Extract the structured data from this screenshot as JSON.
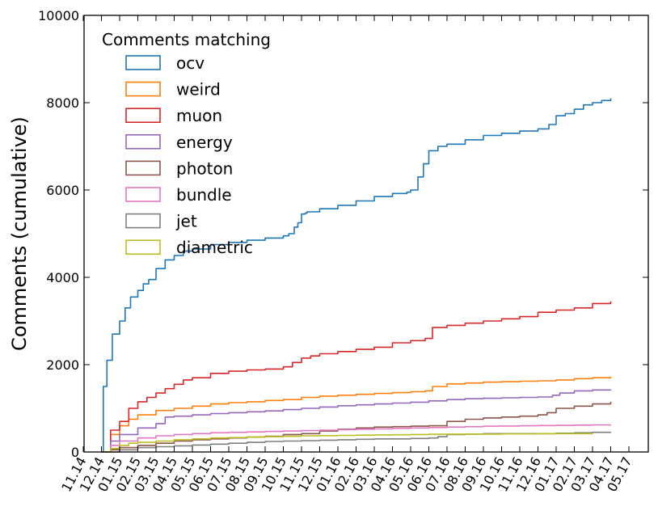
{
  "chart_data": {
    "type": "line",
    "title": "",
    "xlabel": "",
    "ylabel": "Comments (cumulative)",
    "ylim": [
      0,
      10000
    ],
    "yticks": [
      0,
      2000,
      4000,
      6000,
      8000,
      10000
    ],
    "xticks": [
      "11.14",
      "12.14",
      "01.15",
      "02.15",
      "03.15",
      "04.15",
      "05.15",
      "06.15",
      "07.15",
      "08.15",
      "09.15",
      "10.15",
      "11.15",
      "12.15",
      "01.16",
      "02.16",
      "03.16",
      "04.16",
      "05.16",
      "06.16",
      "07.16",
      "08.16",
      "09.16",
      "10.16",
      "11.16",
      "12.16",
      "01.17",
      "02.17",
      "03.17",
      "04.17",
      "05.17"
    ],
    "grid": false,
    "legend": {
      "title": "Comments matching",
      "placement": "top-left"
    },
    "series": [
      {
        "name": "ocv",
        "color": "#1f77b4",
        "x": [
          1.0,
          1.1,
          1.3,
          1.6,
          2.0,
          2.3,
          2.6,
          3.0,
          3.3,
          3.6,
          4.0,
          4.5,
          5.0,
          5.5,
          6.0,
          7.0,
          8.0,
          9.0,
          10.0,
          11.0,
          11.3,
          11.6,
          11.8,
          12.0,
          12.2,
          12.3,
          13.0,
          14.0,
          15.0,
          16.0,
          17.0,
          17.8,
          18.0,
          18.4,
          18.7,
          19.0,
          19.5,
          20.0,
          21.0,
          22.0,
          23.0,
          24.0,
          25.0,
          25.6,
          26.0,
          26.5,
          27.0,
          27.5,
          28.0,
          28.5,
          29.0
        ],
        "y": [
          0,
          1500,
          2100,
          2700,
          3000,
          3300,
          3550,
          3700,
          3850,
          3950,
          4200,
          4400,
          4500,
          4600,
          4650,
          4750,
          4800,
          4850,
          4900,
          4950,
          5000,
          5150,
          5250,
          5450,
          5470,
          5500,
          5570,
          5650,
          5750,
          5850,
          5920,
          5950,
          6000,
          6300,
          6600,
          6900,
          7000,
          7050,
          7150,
          7250,
          7300,
          7350,
          7400,
          7500,
          7700,
          7750,
          7850,
          7950,
          8000,
          8050,
          8100
        ]
      },
      {
        "name": "weird",
        "color": "#ff7f0e",
        "x": [
          1.0,
          1.5,
          2.0,
          2.5,
          3.0,
          4.0,
          5.0,
          6.0,
          7.0,
          8.0,
          9.0,
          10.0,
          11.0,
          12.0,
          13.0,
          14.0,
          15.0,
          16.0,
          17.0,
          18.0,
          18.8,
          19.2,
          20.0,
          21.0,
          22.0,
          23.0,
          24.0,
          25.0,
          26.0,
          27.0,
          28.0,
          29.0
        ],
        "y": [
          0,
          400,
          600,
          750,
          850,
          950,
          1000,
          1050,
          1100,
          1130,
          1150,
          1180,
          1200,
          1250,
          1280,
          1300,
          1320,
          1340,
          1360,
          1380,
          1400,
          1500,
          1560,
          1580,
          1600,
          1610,
          1620,
          1630,
          1650,
          1680,
          1700,
          1720
        ]
      },
      {
        "name": "muon",
        "color": "#d62728",
        "x": [
          1.0,
          1.5,
          2.0,
          2.5,
          3.0,
          3.5,
          4.0,
          4.5,
          5.0,
          5.5,
          6.0,
          7.0,
          8.0,
          9.0,
          10.0,
          11.0,
          11.5,
          12.0,
          12.5,
          13.0,
          14.0,
          15.0,
          16.0,
          17.0,
          18.0,
          18.8,
          19.2,
          20.0,
          21.0,
          22.0,
          23.0,
          24.0,
          25.0,
          26.0,
          27.0,
          28.0,
          29.0
        ],
        "y": [
          0,
          500,
          700,
          1000,
          1150,
          1250,
          1350,
          1450,
          1550,
          1650,
          1700,
          1800,
          1850,
          1880,
          1900,
          1950,
          2050,
          2150,
          2200,
          2250,
          2300,
          2350,
          2400,
          2500,
          2550,
          2600,
          2850,
          2900,
          2950,
          3000,
          3050,
          3100,
          3200,
          3250,
          3300,
          3400,
          3450
        ]
      },
      {
        "name": "energy",
        "color": "#9467bd",
        "x": [
          1.0,
          1.5,
          2.0,
          3.0,
          4.0,
          4.5,
          5.0,
          6.0,
          7.0,
          8.0,
          9.0,
          10.0,
          11.0,
          12.0,
          13.0,
          14.0,
          15.0,
          16.0,
          17.0,
          18.0,
          19.0,
          20.0,
          21.0,
          22.0,
          23.0,
          24.0,
          25.0,
          25.8,
          26.2,
          27.0,
          28.0,
          29.0
        ],
        "y": [
          0,
          250,
          400,
          550,
          650,
          800,
          820,
          850,
          880,
          900,
          920,
          940,
          970,
          1000,
          1030,
          1060,
          1080,
          1100,
          1120,
          1140,
          1170,
          1200,
          1220,
          1230,
          1240,
          1250,
          1260,
          1300,
          1350,
          1400,
          1420,
          1430
        ]
      },
      {
        "name": "photon",
        "color": "#8c564b",
        "x": [
          1.0,
          1.5,
          2.0,
          3.0,
          4.0,
          5.0,
          6.0,
          7.0,
          8.0,
          9.0,
          10.0,
          11.0,
          12.0,
          13.0,
          14.0,
          15.0,
          16.0,
          17.0,
          18.0,
          19.0,
          20.0,
          21.0,
          22.0,
          23.0,
          24.0,
          25.0,
          25.5,
          26.0,
          27.0,
          28.0,
          29.0
        ],
        "y": [
          0,
          50,
          100,
          150,
          200,
          250,
          280,
          300,
          320,
          340,
          360,
          400,
          420,
          480,
          520,
          550,
          570,
          580,
          590,
          600,
          700,
          750,
          780,
          800,
          820,
          850,
          900,
          1000,
          1050,
          1100,
          1150
        ]
      },
      {
        "name": "bundle",
        "color": "#e377c2",
        "x": [
          1.0,
          1.5,
          2.0,
          3.0,
          4.0,
          5.0,
          6.0,
          7.0,
          8.0,
          9.0,
          10.0,
          11.0,
          12.0,
          13.0,
          14.0,
          15.0,
          16.0,
          17.0,
          18.0,
          19.0,
          20.0,
          21.0,
          22.0,
          23.0,
          24.0,
          25.0,
          26.0,
          27.0,
          28.0,
          29.0
        ],
        "y": [
          0,
          150,
          250,
          320,
          370,
          400,
          420,
          440,
          450,
          460,
          470,
          480,
          490,
          500,
          510,
          520,
          530,
          540,
          550,
          560,
          570,
          580,
          590,
          595,
          600,
          605,
          610,
          615,
          620,
          625
        ]
      },
      {
        "name": "jet",
        "color": "#7f7f7f",
        "x": [
          1.0,
          2.0,
          3.0,
          4.0,
          5.0,
          6.0,
          7.0,
          8.0,
          9.0,
          10.0,
          11.0,
          12.0,
          13.0,
          14.0,
          15.0,
          16.0,
          17.0,
          18.0,
          19.0,
          19.5,
          20.0,
          21.0,
          22.0,
          23.0,
          24.0,
          25.0,
          26.0,
          27.0,
          28.0,
          29.0
        ],
        "y": [
          0,
          50,
          100,
          120,
          140,
          160,
          180,
          200,
          220,
          240,
          250,
          260,
          270,
          280,
          290,
          300,
          300,
          310,
          320,
          350,
          400,
          410,
          420,
          420,
          420,
          420,
          430,
          440,
          450,
          460
        ]
      },
      {
        "name": "diametric",
        "color": "#bcbd22",
        "x": [
          1.0,
          1.5,
          2.0,
          2.5,
          3.0,
          4.0,
          5.0,
          6.0,
          7.0,
          8.0,
          9.0,
          10.0,
          11.0,
          12.0,
          13.0,
          14.0,
          15.0,
          16.0,
          17.0,
          18.0,
          19.0,
          20.0,
          21.0,
          22.0,
          23.0,
          24.0,
          25.0,
          26.0,
          27.0,
          28.0
        ],
        "y": [
          0,
          80,
          150,
          200,
          220,
          250,
          280,
          300,
          320,
          330,
          340,
          350,
          360,
          370,
          375,
          380,
          385,
          390,
          395,
          400,
          405,
          410,
          410,
          410,
          415,
          415,
          420,
          420,
          420,
          420
        ]
      }
    ]
  }
}
